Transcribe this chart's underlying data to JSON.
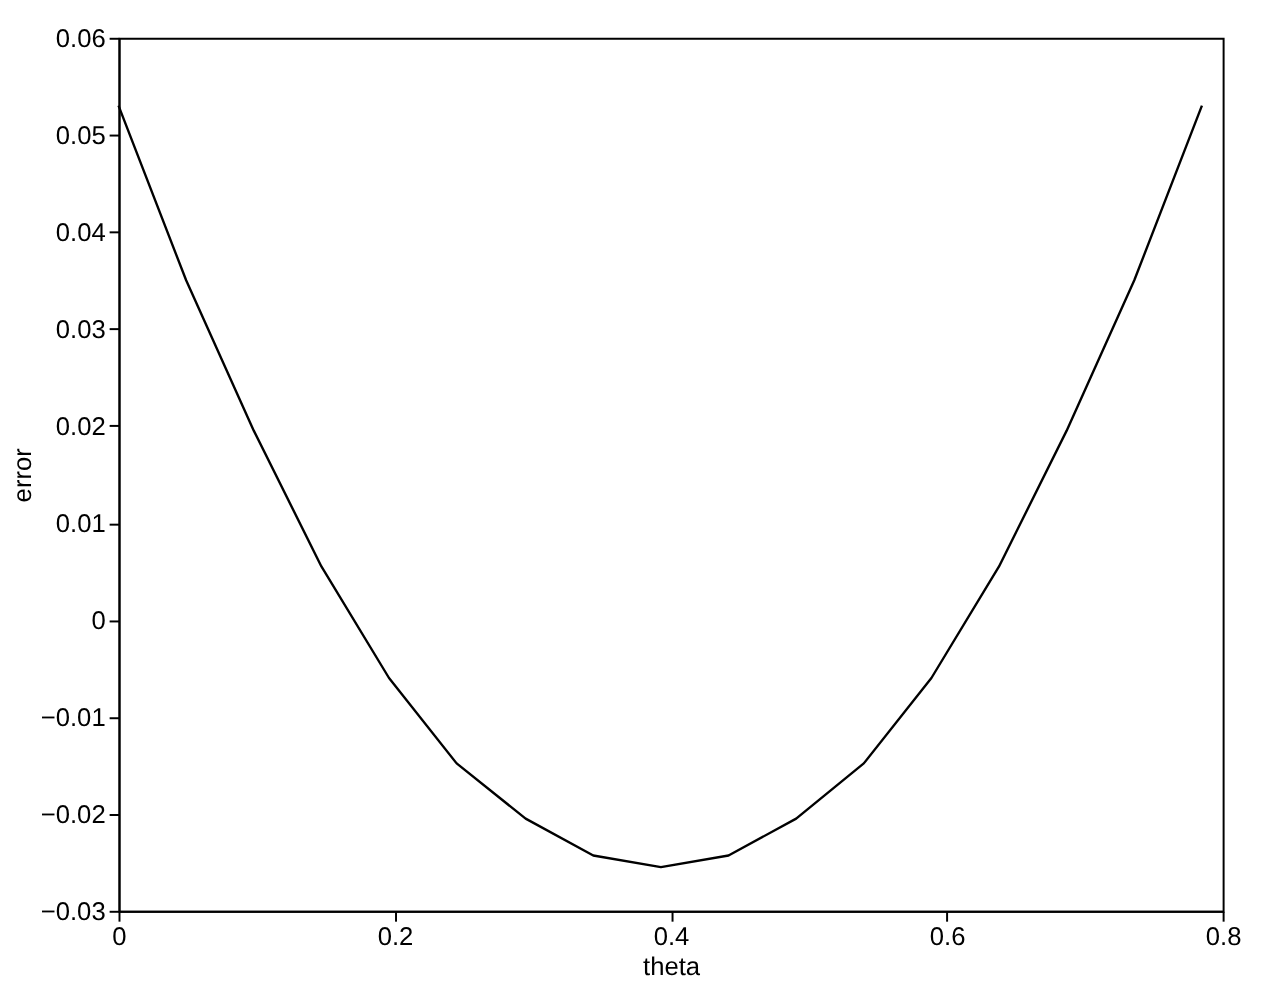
{
  "chart_data": {
    "type": "line",
    "xlabel": "theta",
    "ylabel": "error",
    "x": [
      0,
      0.049,
      0.098,
      0.147,
      0.196,
      0.245,
      0.295,
      0.344,
      0.393,
      0.442,
      0.491,
      0.54,
      0.589,
      0.638,
      0.687,
      0.736,
      0.785
    ],
    "series": [
      {
        "color": "#000000",
        "values": [
          0.053,
          0.035,
          0.0195,
          0.0055,
          -0.006,
          -0.0148,
          -0.0205,
          -0.0243,
          -0.0255,
          -0.0243,
          -0.0205,
          -0.0148,
          -0.006,
          0.0055,
          0.0195,
          0.035,
          0.053
        ]
      }
    ],
    "xlim": [
      0,
      0.8
    ],
    "ylim": [
      -0.03,
      0.06
    ],
    "xticks": [
      0,
      0.2,
      0.4,
      0.6,
      0.8
    ],
    "yticks": [
      -0.03,
      -0.02,
      -0.01,
      0,
      0.01,
      0.02,
      0.03,
      0.04,
      0.05,
      0.06
    ],
    "grid": false,
    "marker": "none",
    "line_style": "solid"
  }
}
